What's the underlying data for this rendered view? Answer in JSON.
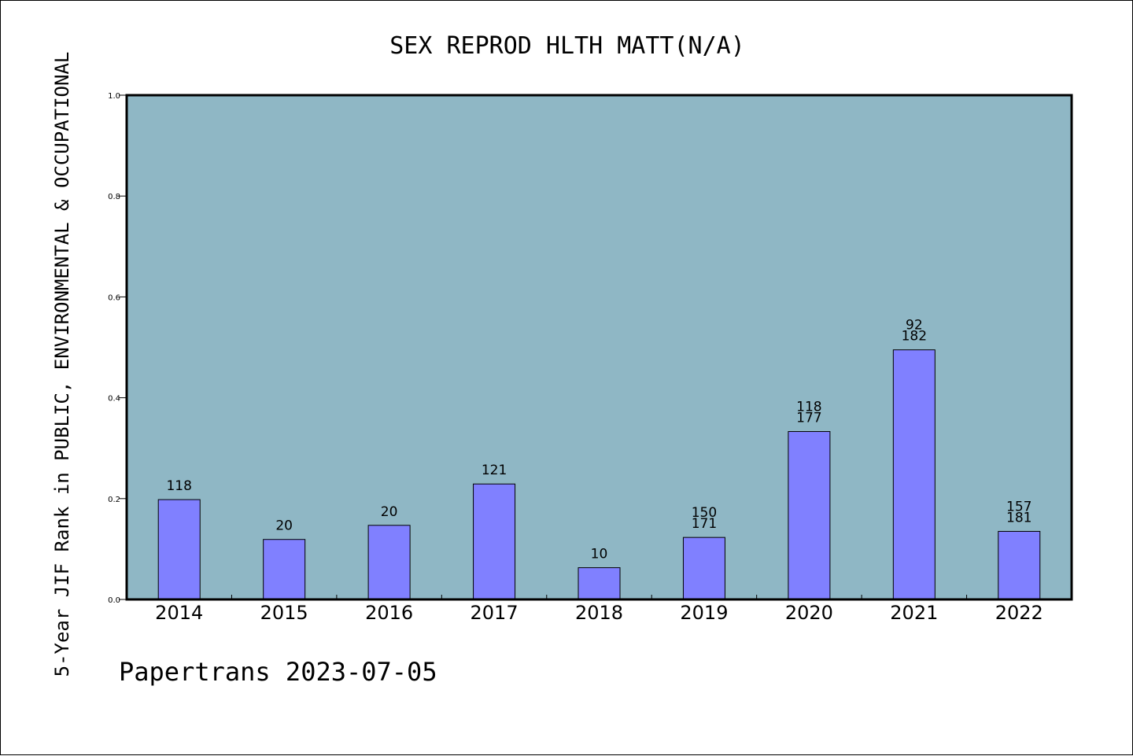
{
  "chart_data": {
    "type": "bar",
    "title": "SEX REPROD HLTH MATT(N/A)",
    "ylabel": "5-Year JIF Rank in PUBLIC, ENVIRONMENTAL & OCCUPATIONAL",
    "xlabel": "",
    "ylim": [
      0,
      1.0
    ],
    "yticks": [
      "0.0",
      "0.2",
      "0.4",
      "0.6",
      "0.8",
      "1.0"
    ],
    "categories": [
      "2014",
      "2015",
      "2016",
      "2017",
      "2018",
      "2019",
      "2020",
      "2021",
      "2022"
    ],
    "values": [
      0.198,
      0.119,
      0.147,
      0.229,
      0.063,
      0.123,
      0.333,
      0.495,
      0.135
    ],
    "labels": [
      [
        "118"
      ],
      [
        "20"
      ],
      [
        "20"
      ],
      [
        "121"
      ],
      [
        "10"
      ],
      [
        "150",
        "171"
      ],
      [
        "118",
        "177"
      ],
      [
        "92",
        "182"
      ],
      [
        "157",
        "181"
      ]
    ],
    "grid": false,
    "colors": {
      "plot_bg": "#8fb7c5",
      "bar": "#8080ff",
      "bar_edge": "#000000"
    }
  },
  "footer": {
    "text": "Papertrans 2023-07-05"
  }
}
